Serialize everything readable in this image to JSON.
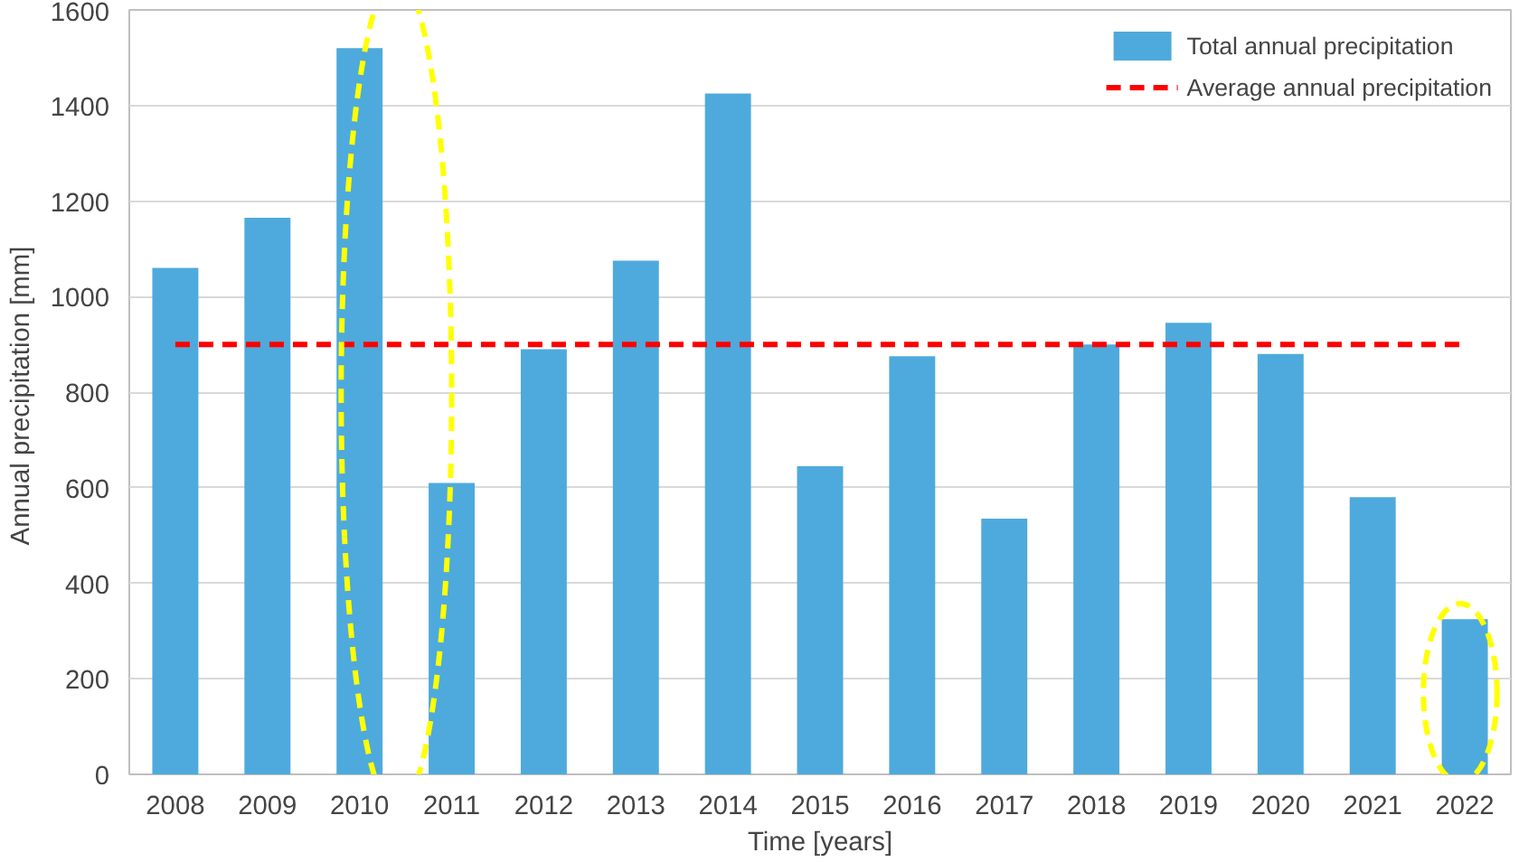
{
  "chart_data": {
    "type": "bar",
    "xlabel": "Time [years]",
    "ylabel": "Annual precipitation  [mm]",
    "categories": [
      "2008",
      "2009",
      "2010",
      "2011",
      "2012",
      "2013",
      "2014",
      "2015",
      "2016",
      "2017",
      "2018",
      "2019",
      "2020",
      "2021",
      "2022"
    ],
    "series": [
      {
        "name": "Total annual precipitation",
        "color": "#4eaadc",
        "values": [
          1060,
          1165,
          1520,
          610,
          890,
          1075,
          1425,
          645,
          875,
          535,
          900,
          945,
          880,
          580,
          325
        ]
      }
    ],
    "ylim": [
      0,
      1600
    ],
    "yticks": [
      0,
      200,
      400,
      600,
      800,
      1000,
      1200,
      1400,
      1600
    ],
    "grid": "y",
    "legend": "top right",
    "ref_lines": [
      {
        "axis": "y",
        "value": 900,
        "label": "Average annual precipitation",
        "color": "#ff0000",
        "line_style": "dashed"
      }
    ]
  }
}
